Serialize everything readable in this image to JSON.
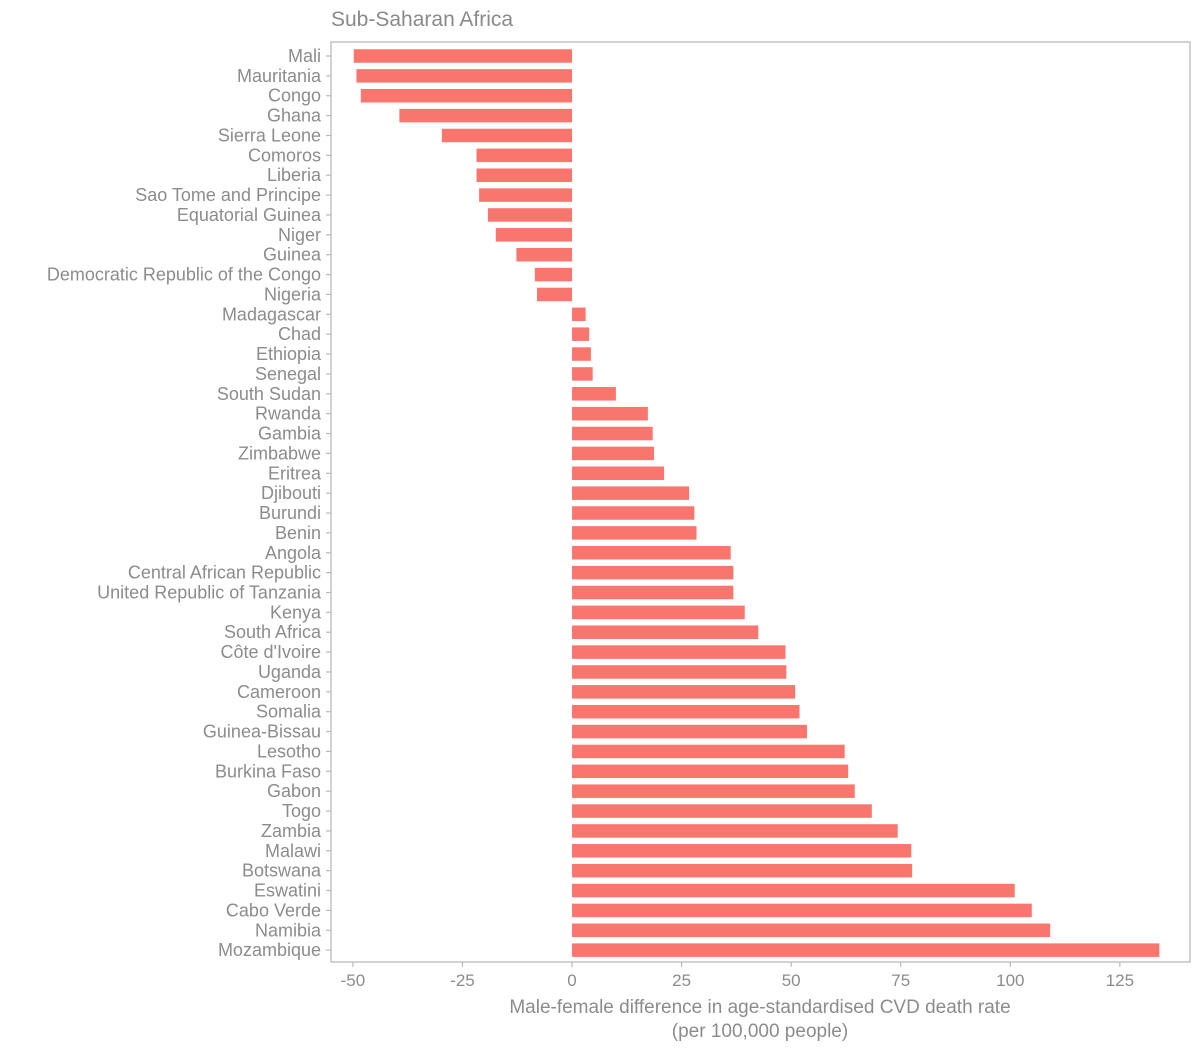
{
  "chart_data": {
    "type": "bar",
    "orientation": "horizontal",
    "facet_title": "Sub-Saharan Africa",
    "xlabel_line1": "Male-female difference in age-standardised CVD death rate",
    "xlabel_line2": "(per 100,000 people)",
    "ylabel": "",
    "xlim": [
      -55,
      141
    ],
    "xticks": [
      -50,
      -25,
      0,
      25,
      50,
      75,
      100,
      125
    ],
    "xtick_labels": [
      "-50",
      "-25",
      "0",
      "25",
      "50",
      "75",
      "100",
      "125"
    ],
    "bar_color": "#F8766D",
    "categories": [
      "Mali",
      "Mauritania",
      "Congo",
      "Ghana",
      "Sierra Leone",
      "Comoros",
      "Liberia",
      "Sao Tome and Principe",
      "Equatorial Guinea",
      "Niger",
      "Guinea",
      "Democratic Republic of the Congo",
      "Nigeria",
      "Madagascar",
      "Chad",
      "Ethiopia",
      "Senegal",
      "South Sudan",
      "Rwanda",
      "Gambia",
      "Zimbabwe",
      "Eritrea",
      "Djibouti",
      "Burundi",
      "Benin",
      "Angola",
      "Central African Republic",
      "United Republic of Tanzania",
      "Kenya",
      "South Africa",
      "Côte d'Ivoire",
      "Uganda",
      "Cameroon",
      "Somalia",
      "Guinea-Bissau",
      "Lesotho",
      "Burkina Faso",
      "Gabon",
      "Togo",
      "Zambia",
      "Malawi",
      "Botswana",
      "Eswatini",
      "Cabo Verde",
      "Namibia",
      "Mozambique"
    ],
    "values": [
      -49.8,
      -49.2,
      -48.2,
      -39.4,
      -29.7,
      -21.8,
      -21.8,
      -21.2,
      -19.2,
      -17.4,
      -12.7,
      -8.5,
      -8.0,
      3.1,
      3.9,
      4.3,
      4.7,
      10.0,
      17.3,
      18.4,
      18.7,
      21.0,
      26.7,
      27.9,
      28.4,
      36.2,
      36.8,
      36.8,
      39.4,
      42.5,
      48.7,
      48.9,
      50.9,
      51.9,
      53.6,
      62.2,
      63.0,
      64.5,
      68.4,
      74.3,
      77.4,
      77.6,
      101.0,
      104.9,
      109.1,
      134.0
    ]
  }
}
